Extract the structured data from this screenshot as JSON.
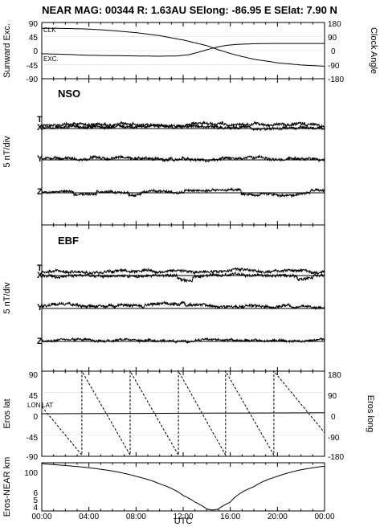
{
  "title": "NEAR MAG: 00344  R: 1.63AU  SElong:  -86.95 E  SElat:    7.90 N",
  "x_axis": {
    "label": "UTC",
    "ticks": [
      "00:00",
      "04:00",
      "08:00",
      "12:00",
      "16:00",
      "20:00",
      "00:00"
    ]
  },
  "panel1": {
    "left_label": "Sunward Exc.",
    "right_label": "Clock Angle",
    "left_ticks": [
      "90",
      "45",
      "0",
      "-45",
      "-90"
    ],
    "right_ticks": [
      "180",
      "90",
      "0",
      "-90",
      "-180"
    ],
    "tag_clk": "CLK",
    "tag_exc": "EXC."
  },
  "panel2": {
    "name": "NSO",
    "ylabel": "5 nT/div",
    "comp_t": "T",
    "comp_x": "X",
    "comp_y": "Y",
    "comp_z": "Z"
  },
  "panel3": {
    "name": "EBF",
    "ylabel": "5 nT/div",
    "comp_t": "T",
    "comp_x": "X",
    "comp_y": "Y",
    "comp_z": "Z"
  },
  "panel4": {
    "left_label": "Eros lat",
    "right_label": "Eros long",
    "left_ticks": [
      "90",
      "45",
      "0",
      "-45",
      "-90"
    ],
    "right_ticks": [
      "180",
      "90",
      "0",
      "-90",
      "-180"
    ],
    "tag_lon": "LON",
    "tag_lat": "LAT"
  },
  "panel5": {
    "ylabel": "Eros-NEAR km",
    "ticks": [
      "100",
      "6",
      "5",
      "4"
    ]
  },
  "chart_data": {
    "type": "line",
    "x_range_hours": [
      0,
      24
    ],
    "panels": [
      {
        "panel": "Sunward Exc. / Clock Angle",
        "left_ylim": [
          -90,
          90
        ],
        "right_ylim": [
          -180,
          180
        ],
        "series": [
          {
            "name": "CLK",
            "axis": "right",
            "points": [
              [
                0,
                143
              ],
              [
                2,
                142
              ],
              [
                4,
                138
              ],
              [
                6,
                128
              ],
              [
                8,
                115
              ],
              [
                10,
                96
              ],
              [
                12,
                68
              ],
              [
                14,
                32
              ],
              [
                15,
                5
              ],
              [
                16,
                -18
              ],
              [
                17,
                -38
              ],
              [
                18,
                -55
              ],
              [
                20,
                -78
              ],
              [
                22,
                -92
              ],
              [
                24,
                -100
              ]
            ]
          },
          {
            "name": "EXC.",
            "axis": "left",
            "points": [
              [
                0,
                -10
              ],
              [
                2,
                -12
              ],
              [
                4,
                -15
              ],
              [
                6,
                -16
              ],
              [
                8,
                -17
              ],
              [
                10,
                -18
              ],
              [
                11.5,
                -17
              ],
              [
                12.5,
                -13
              ],
              [
                13.5,
                -3
              ],
              [
                14.5,
                8
              ],
              [
                15.5,
                16
              ],
              [
                16.5,
                20
              ],
              [
                18,
                22
              ],
              [
                20,
                23
              ],
              [
                22,
                23
              ],
              [
                24,
                23
              ]
            ]
          }
        ]
      },
      {
        "panel": "Eros lat / Eros long",
        "left_ylim": [
          -90,
          90
        ],
        "right_ylim": [
          -180,
          180
        ],
        "series": [
          {
            "name": "LON",
            "axis": "right",
            "style": "dashed",
            "points": [
              [
                0,
                30
              ],
              [
                3.4,
                -175
              ],
              [
                3.4,
                180
              ],
              [
                7.5,
                -175
              ],
              [
                7.5,
                180
              ],
              [
                11.6,
                -175
              ],
              [
                11.6,
                180
              ],
              [
                15.6,
                -175
              ],
              [
                15.6,
                180
              ],
              [
                19.7,
                -175
              ],
              [
                19.7,
                180
              ],
              [
                24,
                -80
              ]
            ]
          },
          {
            "name": "LAT",
            "axis": "left",
            "points": [
              [
                0,
                0
              ],
              [
                6,
                0.5
              ],
              [
                12,
                1
              ],
              [
                18,
                1.5
              ],
              [
                24,
                2
              ]
            ]
          }
        ]
      },
      {
        "panel": "Eros-NEAR km",
        "yscale": "log",
        "ylim": [
          3,
          130
        ],
        "series": [
          {
            "name": "",
            "points": [
              [
                0,
                120
              ],
              [
                2,
                105
              ],
              [
                4,
                88
              ],
              [
                6,
                68
              ],
              [
                8,
                45
              ],
              [
                10,
                25
              ],
              [
                12,
                10
              ],
              [
                13,
                6
              ],
              [
                14,
                3.5
              ],
              [
                14.5,
                3.2
              ],
              [
                15,
                3.5
              ],
              [
                16,
                6
              ],
              [
                18,
                20
              ],
              [
                20,
                45
              ],
              [
                22,
                75
              ],
              [
                24,
                100
              ]
            ]
          }
        ]
      }
    ]
  }
}
